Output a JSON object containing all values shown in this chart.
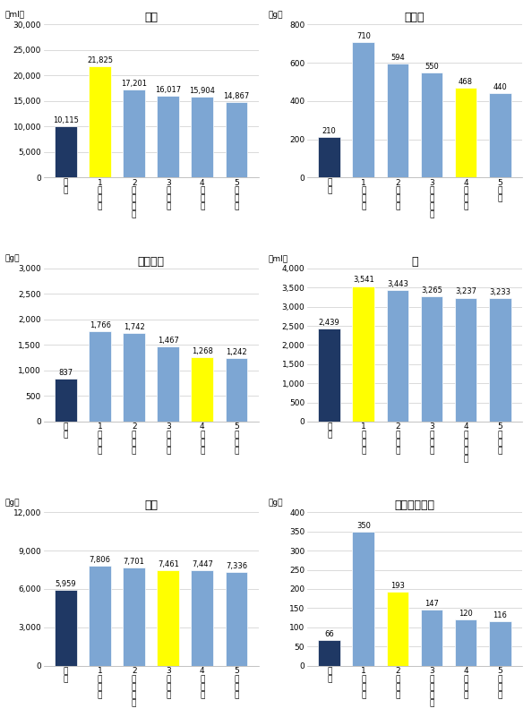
{
  "charts": [
    {
      "title": "焼酎",
      "unit": "（ml）",
      "ylim": [
        0,
        30000
      ],
      "yticks": [
        0,
        5000,
        10000,
        15000,
        20000,
        25000,
        30000
      ],
      "ytick_labels": [
        "0",
        "5,000",
        "10,000",
        "15,000",
        "20,000",
        "25,000",
        "30,000"
      ],
      "categories": [
        "全\n国",
        "1\n宮\n崎\n市",
        "2\n鹿\n児\n島\n市",
        "3\n札\n幌\n市",
        "4\n青\n森\n市",
        "5\n盛\n岡\n市"
      ],
      "values": [
        10115,
        21825,
        17201,
        16017,
        15904,
        14867
      ],
      "colors": [
        "#1f3864",
        "#ffff00",
        "#7da6d3",
        "#7da6d3",
        "#7da6d3",
        "#7da6d3"
      ],
      "value_labels": [
        "10,115",
        "21,825",
        "17,201",
        "16,017",
        "15,904",
        "14,867"
      ]
    },
    {
      "title": "煮干し",
      "unit": "（g）",
      "ylim": [
        0,
        800
      ],
      "yticks": [
        0,
        200,
        400,
        600,
        800
      ],
      "ytick_labels": [
        "0",
        "200",
        "400",
        "600",
        "800"
      ],
      "categories": [
        "全\n国",
        "1\n長\n崎\n市",
        "2\n大\n分\n市",
        "3\n北\n九\n州\n市",
        "4\n宮\n崎\n市",
        "5\n津\n市"
      ],
      "values": [
        210,
        710,
        594,
        550,
        468,
        440
      ],
      "colors": [
        "#1f3864",
        "#7da6d3",
        "#7da6d3",
        "#7da6d3",
        "#ffff00",
        "#7da6d3"
      ],
      "value_labels": [
        "210",
        "710",
        "594",
        "550",
        "468",
        "440"
      ]
    },
    {
      "title": "干しあじ",
      "unit": "（g）",
      "ylim": [
        0,
        3000
      ],
      "yticks": [
        0,
        500,
        1000,
        1500,
        2000,
        2500,
        3000
      ],
      "ytick_labels": [
        "0",
        "500",
        "1,000",
        "1,500",
        "2,000",
        "2,500",
        "3,000"
      ],
      "categories": [
        "全\n国",
        "1\n静\n岡\n市",
        "2\n甲\n府\n市",
        "3\n千\n葉\n市",
        "4\n宮\n崎\n市",
        "5\n川\n崎\n市"
      ],
      "values": [
        837,
        1766,
        1742,
        1467,
        1268,
        1242
      ],
      "colors": [
        "#1f3864",
        "#7da6d3",
        "#7da6d3",
        "#7da6d3",
        "#ffff00",
        "#7da6d3"
      ],
      "value_labels": [
        "837",
        "1,766",
        "1,742",
        "1,467",
        "1,268",
        "1,242"
      ]
    },
    {
      "title": "酢",
      "unit": "（ml）",
      "ylim": [
        0,
        4000
      ],
      "yticks": [
        0,
        500,
        1000,
        1500,
        2000,
        2500,
        3000,
        3500,
        4000
      ],
      "ytick_labels": [
        "0",
        "500",
        "1,000",
        "1,500",
        "2,000",
        "2,500",
        "3,000",
        "3,500",
        "4,000"
      ],
      "categories": [
        "全\n国",
        "1\n宮\n崎\n市",
        "2\n松\n山\n市",
        "3\n奈\n良\n市",
        "4\n和\n歌\n山\n市",
        "5\n広\n島\n市"
      ],
      "values": [
        2439,
        3541,
        3443,
        3265,
        3237,
        3233
      ],
      "colors": [
        "#1f3864",
        "#ffff00",
        "#7da6d3",
        "#7da6d3",
        "#7da6d3",
        "#7da6d3"
      ],
      "value_labels": [
        "2,439",
        "3,541",
        "3,443",
        "3,265",
        "3,237",
        "3,233"
      ]
    },
    {
      "title": "砂糖",
      "unit": "（g）",
      "ylim": [
        0,
        12000
      ],
      "yticks": [
        0,
        3000,
        6000,
        9000,
        12000
      ],
      "ytick_labels": [
        "0",
        "3,000",
        "6,000",
        "9,000",
        "12,000"
      ],
      "categories": [
        "全\n国",
        "1\n佐\n賀\n市",
        "2\n和\n歌\n山\n市",
        "3\n宮\n崎\n市",
        "4\n神\n戸\n市",
        "5\n秋\n田\n市"
      ],
      "values": [
        5959,
        7806,
        7701,
        7461,
        7447,
        7336
      ],
      "colors": [
        "#1f3864",
        "#7da6d3",
        "#7da6d3",
        "#ffff00",
        "#7da6d3",
        "#7da6d3"
      ],
      "value_labels": [
        "5,959",
        "7,806",
        "7,701",
        "7,461",
        "7,447",
        "7,336"
      ]
    },
    {
      "title": "干ししいたけ",
      "unit": "（g）",
      "ylim": [
        0,
        400
      ],
      "yticks": [
        0,
        50,
        100,
        150,
        200,
        250,
        300,
        350,
        400
      ],
      "ytick_labels": [
        "0",
        "50",
        "100",
        "150",
        "200",
        "250",
        "300",
        "350",
        "400"
      ],
      "categories": [
        "全\n国",
        "1\n大\n分\n市",
        "2\n宮\n崎\n市",
        "3\n北\n九\n州\n市",
        "4\n熊\n本\n市",
        "5\n盛\n岡\n市"
      ],
      "values": [
        66,
        350,
        193,
        147,
        120,
        116
      ],
      "colors": [
        "#1f3864",
        "#7da6d3",
        "#ffff00",
        "#7da6d3",
        "#7da6d3",
        "#7da6d3"
      ],
      "value_labels": [
        "66",
        "350",
        "193",
        "147",
        "120",
        "116"
      ]
    }
  ],
  "bg_color": "#ffffff",
  "grid_color": "#cccccc",
  "title_fontsize": 9,
  "label_fontsize": 6.5,
  "value_fontsize": 6,
  "tick_fontsize": 6.5,
  "unit_fontsize": 6.5
}
